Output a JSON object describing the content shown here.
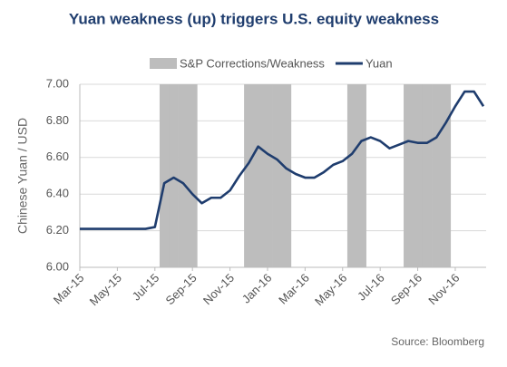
{
  "chart_data": {
    "type": "line",
    "title": "Yuan weakness (up) triggers U.S. equity weakness",
    "y_label": "Chinese Yuan / USD",
    "source": "Source: Bloomberg",
    "categories": [
      "Mar-15",
      null,
      null,
      null,
      "May-15",
      null,
      null,
      null,
      "Jul-15",
      null,
      null,
      null,
      "Sep-15",
      null,
      null,
      null,
      "Nov-15",
      null,
      null,
      null,
      "Jan-16",
      null,
      null,
      null,
      "Mar-16",
      null,
      null,
      null,
      "May-16",
      null,
      null,
      null,
      "Jul-16",
      null,
      null,
      null,
      "Sep-16",
      null,
      null,
      null,
      "Nov-16",
      null,
      null,
      null
    ],
    "series": [
      {
        "name": "S&P Corrections/Weakness",
        "color": "#bdbdbd",
        "kind": "band",
        "values": [
          null,
          null,
          null,
          null,
          null,
          null,
          null,
          null,
          null,
          7.0,
          7.0,
          7.0,
          7.0,
          null,
          null,
          null,
          null,
          null,
          7.0,
          7.0,
          7.0,
          7.0,
          7.0,
          null,
          null,
          null,
          null,
          null,
          null,
          7.0,
          7.0,
          null,
          null,
          null,
          null,
          7.0,
          7.0,
          7.0,
          7.0,
          7.0,
          null,
          null,
          null,
          null
        ]
      },
      {
        "name": "Yuan",
        "color": "#1f3d6e",
        "kind": "line",
        "values": [
          6.21,
          6.21,
          6.21,
          6.21,
          6.21,
          6.21,
          6.21,
          6.21,
          6.22,
          6.46,
          6.49,
          6.46,
          6.4,
          6.35,
          6.38,
          6.38,
          6.42,
          6.5,
          6.57,
          6.66,
          6.62,
          6.59,
          6.54,
          6.51,
          6.49,
          6.49,
          6.52,
          6.56,
          6.58,
          6.62,
          6.69,
          6.71,
          6.69,
          6.65,
          6.67,
          6.69,
          6.68,
          6.68,
          6.71,
          6.79,
          6.88,
          6.96,
          6.96,
          6.88
        ]
      }
    ],
    "ylim": [
      6.0,
      7.0
    ],
    "yticks": [
      {
        "value": 6.0,
        "label": "6.00"
      },
      {
        "value": 6.2,
        "label": "6.20"
      },
      {
        "value": 6.4,
        "label": "6.40"
      },
      {
        "value": 6.6,
        "label": "6.60"
      },
      {
        "value": 6.8,
        "label": "6.80"
      },
      {
        "value": 7.0,
        "label": "7.00"
      }
    ],
    "grid": true
  }
}
